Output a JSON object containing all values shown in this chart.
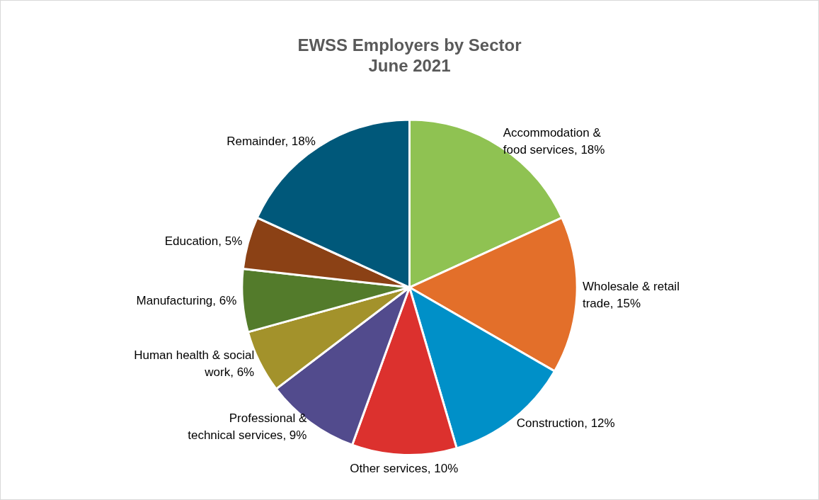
{
  "chart_data": {
    "type": "pie",
    "title": "EWSS Employers by Sector\nJune 2021",
    "categories": [
      "Accommodation & food services",
      "Wholesale & retail trade",
      "Construction",
      "Other services",
      "Professional & technical services",
      "Human health & social work",
      "Manufacturing",
      "Education",
      "Remainder"
    ],
    "values": [
      18,
      15,
      12,
      10,
      9,
      6,
      6,
      5,
      18
    ],
    "colors": [
      "#8fc252",
      "#e36f2a",
      "#0090c8",
      "#dc312e",
      "#524b8d",
      "#a3922b",
      "#537b2b",
      "#8b4115",
      "#00587a"
    ],
    "value_labels": [
      ", 18%",
      ", 15%",
      ", 12%",
      ", 10%",
      ", 9%",
      ", 6%",
      ", 6%",
      ", 5%",
      ", 18%"
    ],
    "legend": false
  }
}
